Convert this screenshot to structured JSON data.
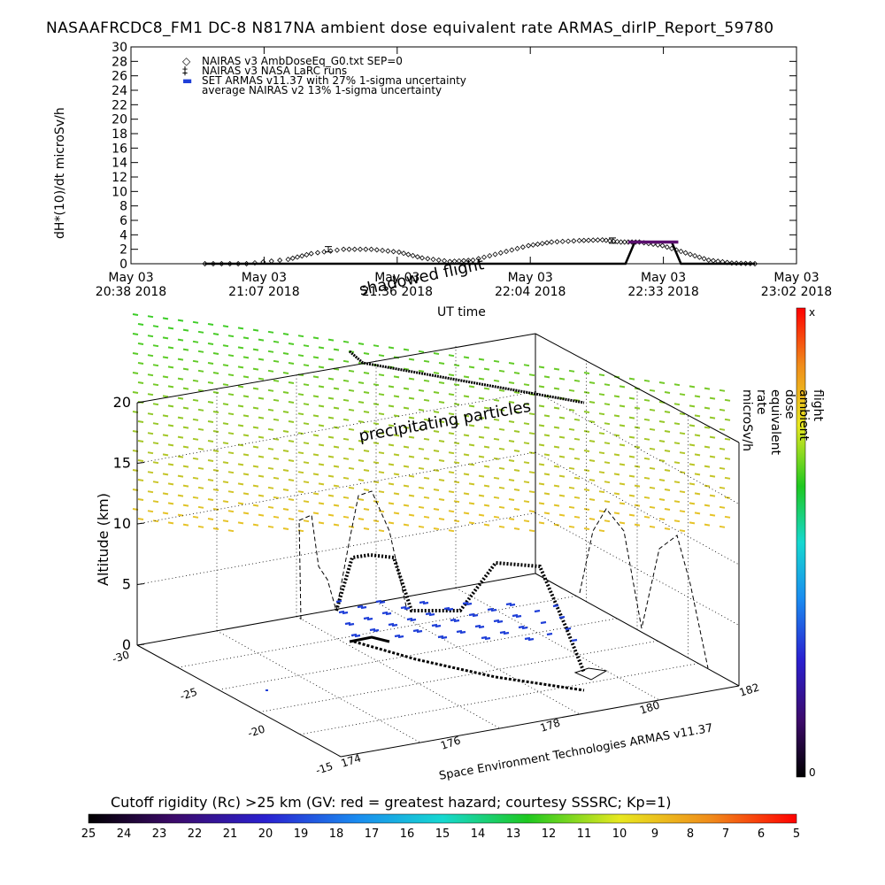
{
  "title": "NASAAFRCDC8_FM1 DC-8   N817NA ambient dose equivalent rate ARMAS_dirIP_Report_59780",
  "top_chart": {
    "ylabel": "dH*(10)/dt microSv/h",
    "xlabel": "UT time",
    "x_ticks": [
      {
        "date": "May 03",
        "time": "20:38 2018"
      },
      {
        "date": "May 03",
        "time": "21:07 2018"
      },
      {
        "date": "May 03",
        "time": "21:36 2018"
      },
      {
        "date": "May 03",
        "time": "22:04 2018"
      },
      {
        "date": "May 03",
        "time": "22:33 2018"
      },
      {
        "date": "May 03",
        "time": "23:02 2018"
      }
    ],
    "legend": [
      {
        "symbol": "◇",
        "text": "NAIRAS v3 AmbDoseEq_G0.txt SEP=0"
      },
      {
        "symbol": "‡",
        "text": "NAIRAS v3 NASA LaRC runs"
      },
      {
        "symbol": "▬",
        "text": "SET ARMAS v11.37 with 27% 1-sigma uncertainty"
      },
      {
        "symbol": "",
        "text": "average NAIRAS v2 13% 1-sigma uncertainty"
      }
    ]
  },
  "chart_data": [
    {
      "type": "line",
      "title": "NASAAFRCDC8_FM1 DC-8   N817NA ambient dose equivalent rate ARMAS_dirIP_Report_59780",
      "xlabel": "UT time",
      "ylabel": "dH*(10)/dt microSv/h",
      "ylim": [
        0,
        30
      ],
      "y_ticks": [
        0,
        2,
        4,
        6,
        8,
        10,
        12,
        14,
        16,
        18,
        20,
        22,
        24,
        26,
        28,
        30
      ],
      "x_ticks": [
        "May 03 20:38 2018",
        "May 03 21:07 2018",
        "May 03 21:36 2018",
        "May 03 22:04 2018",
        "May 03 22:33 2018",
        "May 03 23:02 2018"
      ],
      "series": [
        {
          "name": "NAIRAS v3 AmbDoseEq_G0.txt SEP=0",
          "x": [
            "20:54",
            "21:03",
            "21:12",
            "21:17",
            "21:24",
            "21:30",
            "21:36",
            "21:41",
            "21:47",
            "21:52",
            "21:58",
            "22:04",
            "22:09",
            "22:15",
            "22:20",
            "22:24",
            "22:28",
            "22:33",
            "22:38",
            "22:43",
            "22:48",
            "22:53"
          ],
          "y": [
            0,
            0,
            0.6,
            1.4,
            2.0,
            2.0,
            1.6,
            0.8,
            0.3,
            0.5,
            1.5,
            2.5,
            3.0,
            3.2,
            3.3,
            3.0,
            3.0,
            2.5,
            1.5,
            0.5,
            0.1,
            0
          ]
        },
        {
          "name": "SET ARMAS v11.37 with 27% 1-sigma uncertainty",
          "x": [
            "20:54",
            "22:25",
            "22:27",
            "22:35",
            "22:37",
            "22:53"
          ],
          "y": [
            0,
            0,
            3.0,
            3.0,
            0,
            0
          ]
        }
      ]
    },
    {
      "type": "scatter",
      "title": "",
      "xlabel": "",
      "ylabel": "Altitude (km)",
      "zlim": [
        0,
        20
      ],
      "z_ticks": [
        0,
        5,
        10,
        15,
        20
      ],
      "lon_ticks": [
        174,
        176,
        178,
        180,
        182
      ],
      "lat_ticks": [
        -30,
        -25,
        -20,
        -15
      ],
      "annotations": [
        "shadowed flight",
        "precipitating particles"
      ]
    }
  ],
  "labels": {
    "shadowed": "shadowed flight",
    "precipitating": "precipitating particles",
    "altitude": "Altitude (km)",
    "credit": "Space Environment Technologies ARMAS v11.37",
    "rc": "Cutoff rigidity (Rc) >25 km (GV: red = greatest hazard; courtesy SSSRC; Kp=1)",
    "cb_vertical": "flight ambient dose equivalent rate microSv/h",
    "cb_top": "x",
    "cb_bottom": "0"
  },
  "rigidity_ticks": [
    "25",
    "24",
    "23",
    "22",
    "21",
    "20",
    "19",
    "18",
    "17",
    "16",
    "15",
    "14",
    "13",
    "12",
    "11",
    "10",
    "9",
    "8",
    "7",
    "6",
    "5"
  ],
  "colors": {
    "armas": "#1f3fd8",
    "armas_bar": "#5a0f6e",
    "grid": "#000000"
  }
}
